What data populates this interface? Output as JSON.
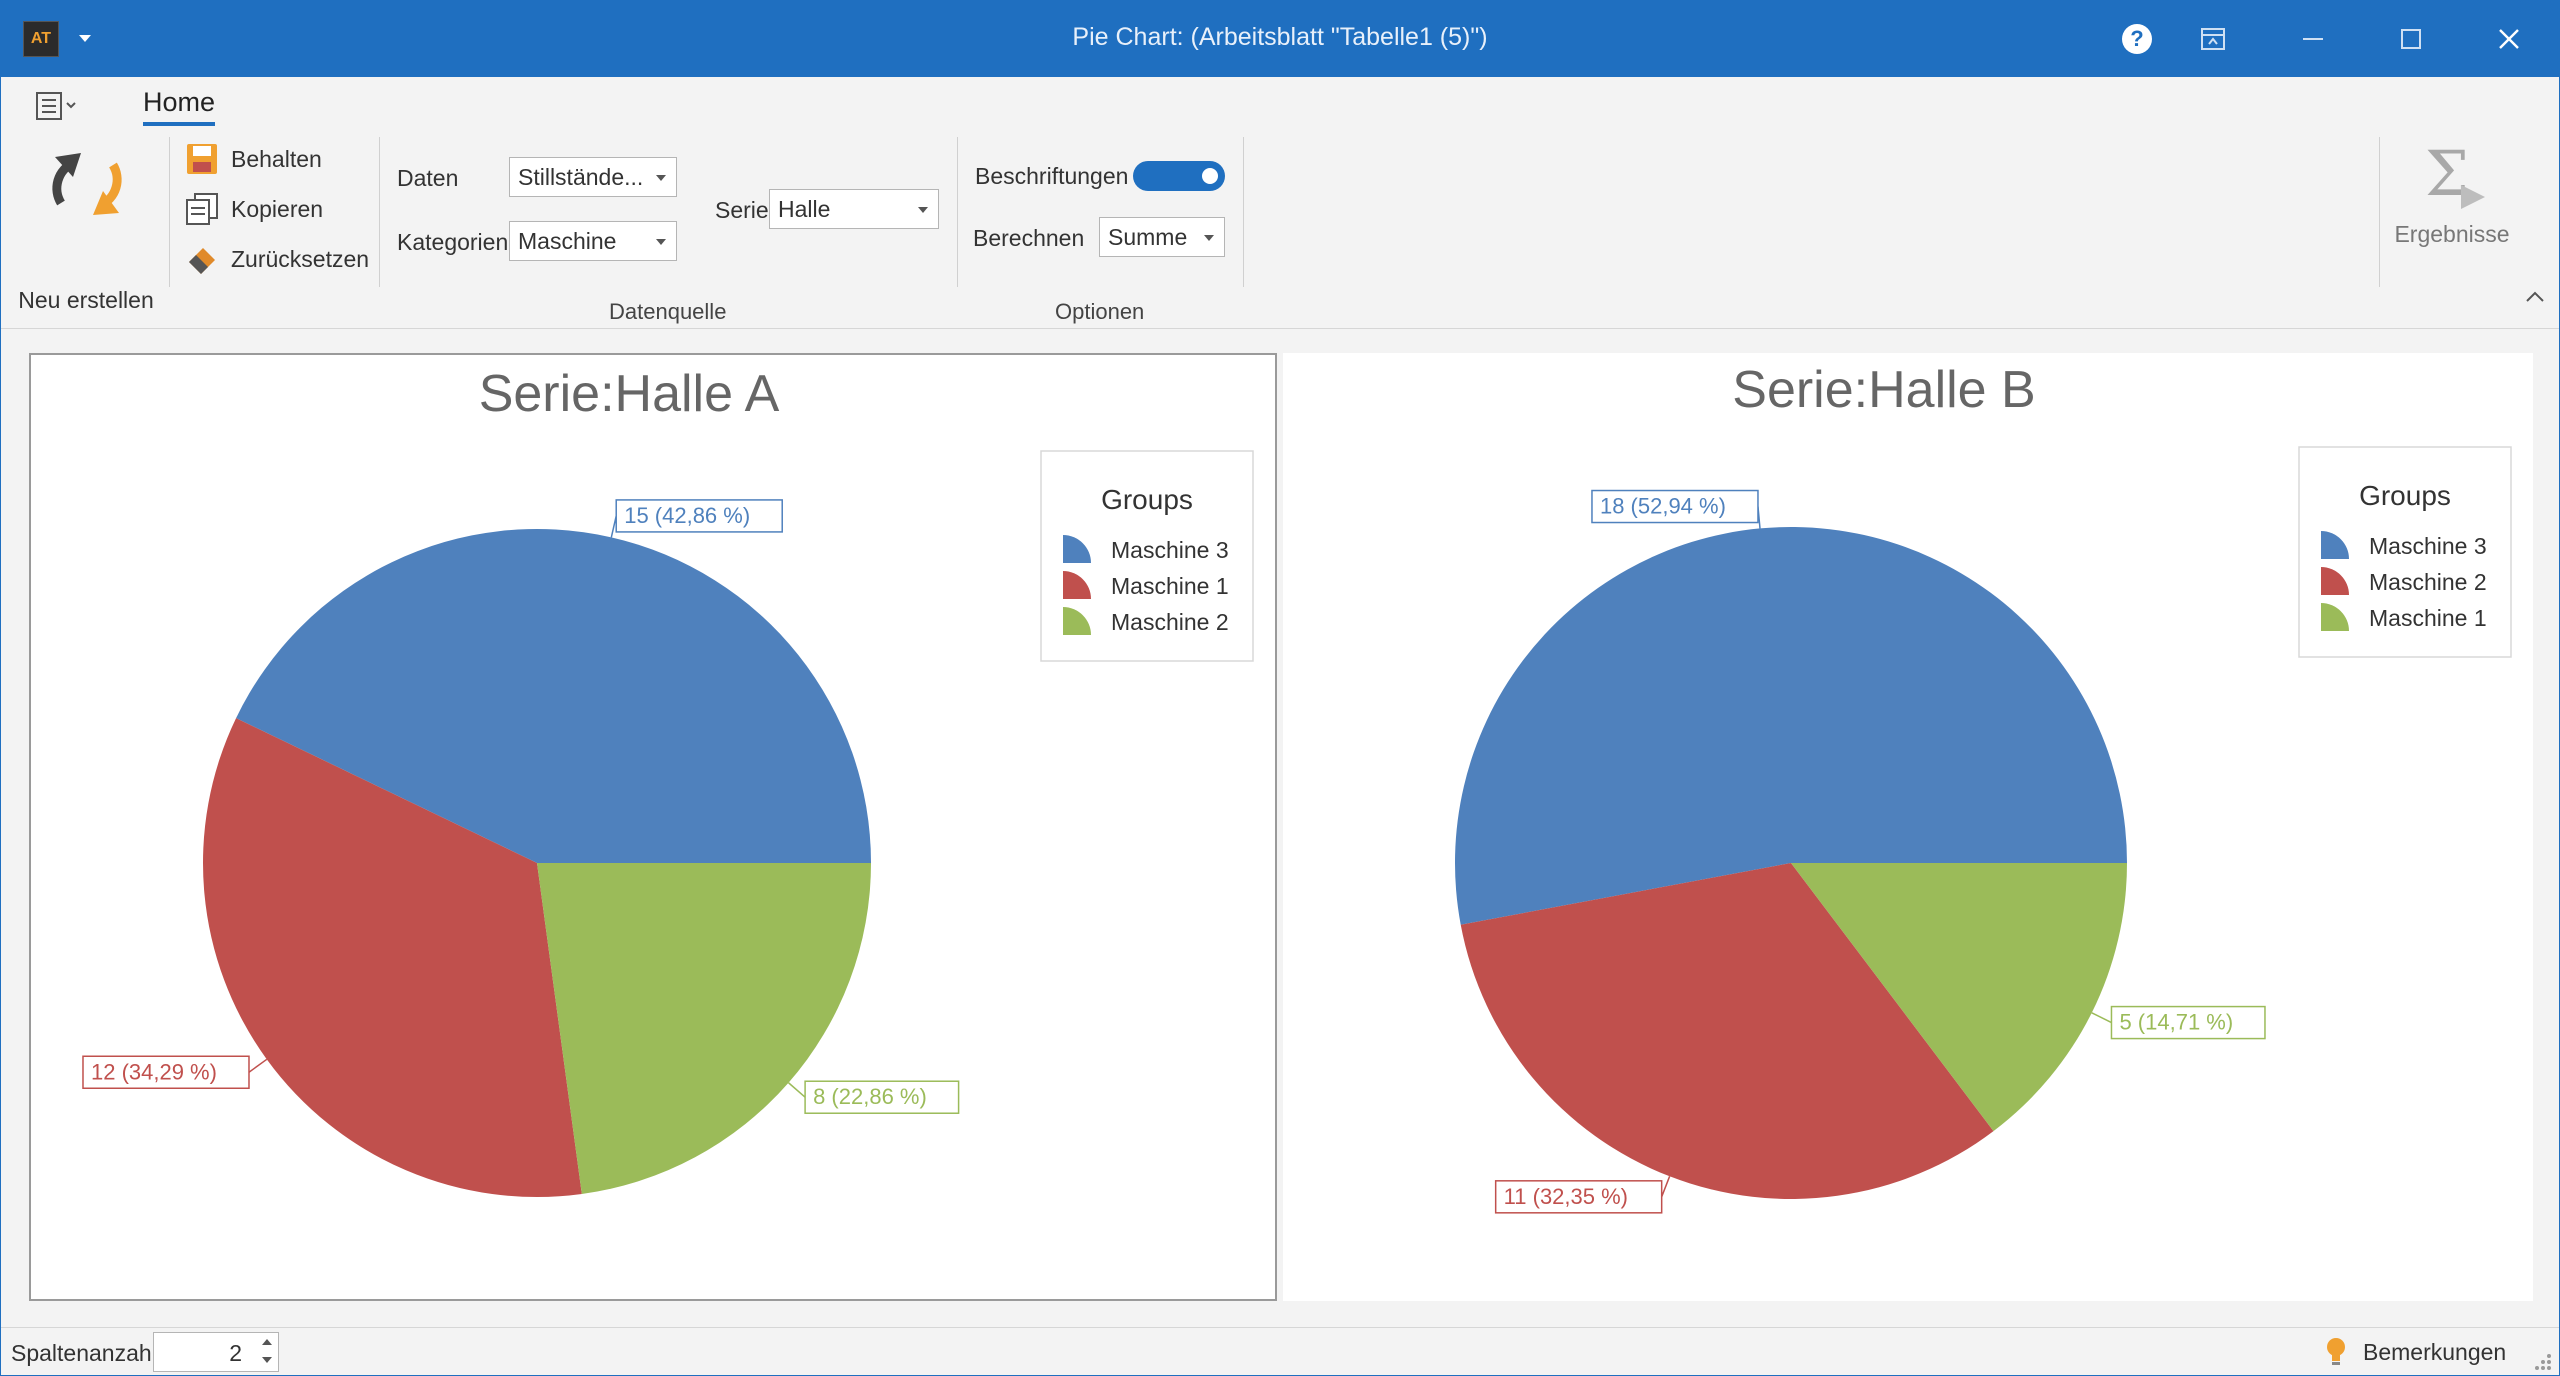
{
  "window": {
    "title": "Pie Chart:  (Arbeitsblatt \"Tabelle1 (5)\")",
    "logo_text": "AT"
  },
  "ribbon": {
    "tab_home": "Home",
    "neu_erstellen": "Neu erstellen",
    "behalten": "Behalten",
    "kopieren": "Kopieren",
    "zuruecksetzen": "Zurücksetzen",
    "daten_label": "Daten",
    "daten_value": "Stillstände...",
    "kategorien_label": "Kategorien",
    "kategorien_value": "Maschine",
    "serie_label": "Serie",
    "serie_value": "Halle",
    "group_datenquelle": "Datenquelle",
    "beschriftungen_label": "Beschriftungen",
    "beschriftungen_on": true,
    "berechnen_label": "Berechnen",
    "berechnen_value": "Summe",
    "group_optionen": "Optionen",
    "ergebnisse": "Ergebnisse"
  },
  "colors": {
    "accent": "#1f6fc0",
    "blue": "#4f81bd",
    "red": "#c0504d",
    "green": "#9bbb59"
  },
  "chart_data": [
    {
      "type": "pie",
      "title": "Serie:Halle A",
      "legend_title": "Groups",
      "legend_position": "top-right",
      "slices": [
        {
          "name": "Maschine 3",
          "value": 15,
          "label": "15 (42,86 %)",
          "color": "#4f81bd"
        },
        {
          "name": "Maschine 2",
          "value": 8,
          "label": "8 (22,86 %)",
          "color": "#9bbb59"
        },
        {
          "name": "Maschine 1",
          "value": 12,
          "label": "12 (34,29 %)",
          "color": "#c0504d"
        }
      ],
      "legend": [
        {
          "name": "Maschine 3",
          "color": "#4f81bd"
        },
        {
          "name": "Maschine 1",
          "color": "#c0504d"
        },
        {
          "name": "Maschine 2",
          "color": "#9bbb59"
        }
      ]
    },
    {
      "type": "pie",
      "title": "Serie:Halle B",
      "legend_title": "Groups",
      "legend_position": "top-right",
      "slices": [
        {
          "name": "Maschine 3",
          "value": 18,
          "label": "18 (52,94 %)",
          "color": "#4f81bd"
        },
        {
          "name": "Maschine 1",
          "value": 5,
          "label": "5 (14,71 %)",
          "color": "#9bbb59"
        },
        {
          "name": "Maschine 2",
          "value": 11,
          "label": "11 (32,35 %)",
          "color": "#c0504d"
        }
      ],
      "legend": [
        {
          "name": "Maschine 3",
          "color": "#4f81bd"
        },
        {
          "name": "Maschine 2",
          "color": "#c0504d"
        },
        {
          "name": "Maschine 1",
          "color": "#9bbb59"
        }
      ]
    }
  ],
  "statusbar": {
    "spaltenanzahl_label": "Spaltenanzahl",
    "spaltenanzahl_value": "2",
    "bemerkungen": "Bemerkungen"
  }
}
